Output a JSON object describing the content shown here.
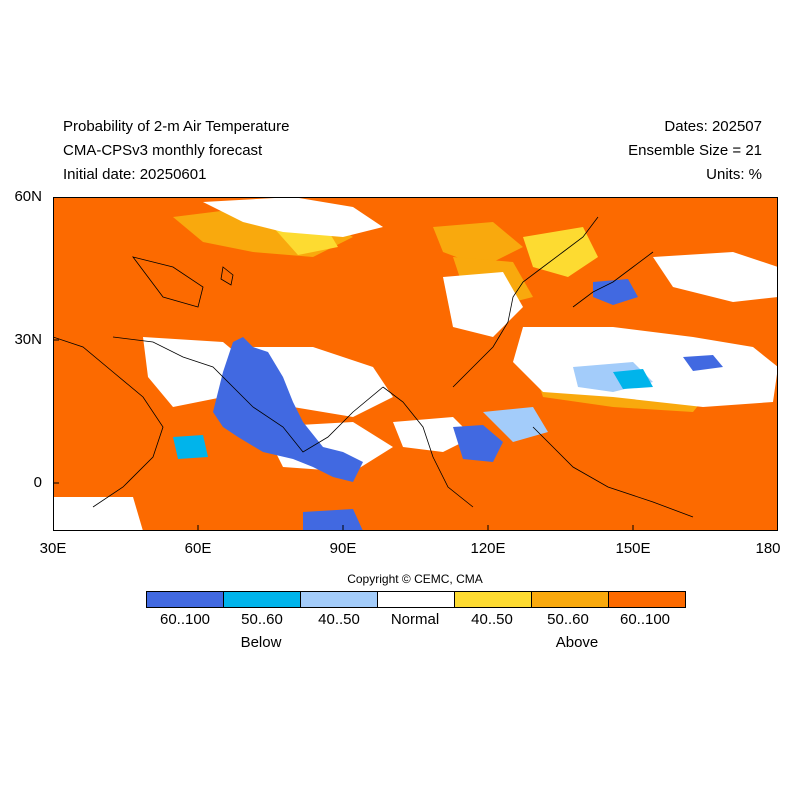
{
  "header": {
    "title_line1": "Probability of 2-m Air Temperature",
    "title_line2": "CMA-CPSv3 monthly forecast",
    "title_line3": "Initial date: 20250601",
    "dates": "Dates: 202507",
    "ensemble": "Ensemble Size = 21",
    "units": "Units: %"
  },
  "map": {
    "lat_range": [
      -10,
      60
    ],
    "lon_range": [
      30,
      180
    ],
    "y_ticks": [
      "60N",
      "30N",
      "0"
    ],
    "x_ticks": [
      "30E",
      "60E",
      "90E",
      "120E",
      "150E",
      "180"
    ],
    "background_category": "Above 60..100"
  },
  "copyright": "Copyright © CEMC, CMA",
  "legend": {
    "categories": [
      {
        "label": "60..100",
        "color": "#4169e1"
      },
      {
        "label": "50..60",
        "color": "#00b4eb"
      },
      {
        "label": "40..50",
        "color": "#a3ccfa"
      },
      {
        "label": "Normal",
        "color": "#ffffff"
      },
      {
        "label": "40..50",
        "color": "#fddb31"
      },
      {
        "label": "50..60",
        "color": "#f9a90d"
      },
      {
        "label": "60..100",
        "color": "#fc6a00"
      }
    ],
    "below_label": "Below",
    "above_label": "Above"
  }
}
